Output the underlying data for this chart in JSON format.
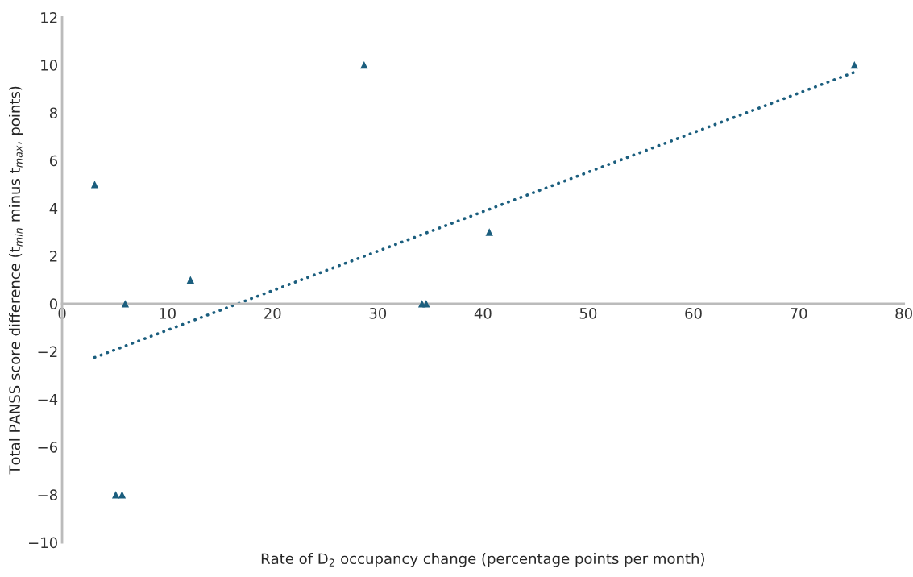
{
  "chart_data": {
    "type": "scatter",
    "xlabel": "Rate of D$_{2}$ occupancy change (percentage points per month)",
    "ylabel": "Total PANSS score difference (t$_{min}$ minus t$_{max}$, points)",
    "xlim": [
      0,
      80
    ],
    "xticks": [
      0,
      10,
      20,
      30,
      40,
      50,
      60,
      70,
      80
    ],
    "ylim": [
      -10,
      12
    ],
    "yticks": [
      -10,
      -8,
      -6,
      -4,
      -2,
      0,
      2,
      4,
      6,
      8,
      10,
      12
    ],
    "grid": false,
    "legend": false,
    "series": [
      {
        "marker": "triangle",
        "color": "#1b5e7e",
        "x": [
          3.1,
          6.0,
          5.1,
          5.7,
          12.2,
          28.7,
          34.2,
          34.6,
          40.6,
          75.3
        ],
        "values": [
          5,
          0,
          -8,
          -8,
          1,
          10,
          0,
          0,
          3,
          10
        ]
      },
      {
        "type": "line",
        "line_style": "dotted",
        "color": "#1b5e7e",
        "x": [
          3.1,
          75.3
        ],
        "values": [
          -2.25,
          9.7
        ]
      }
    ]
  }
}
